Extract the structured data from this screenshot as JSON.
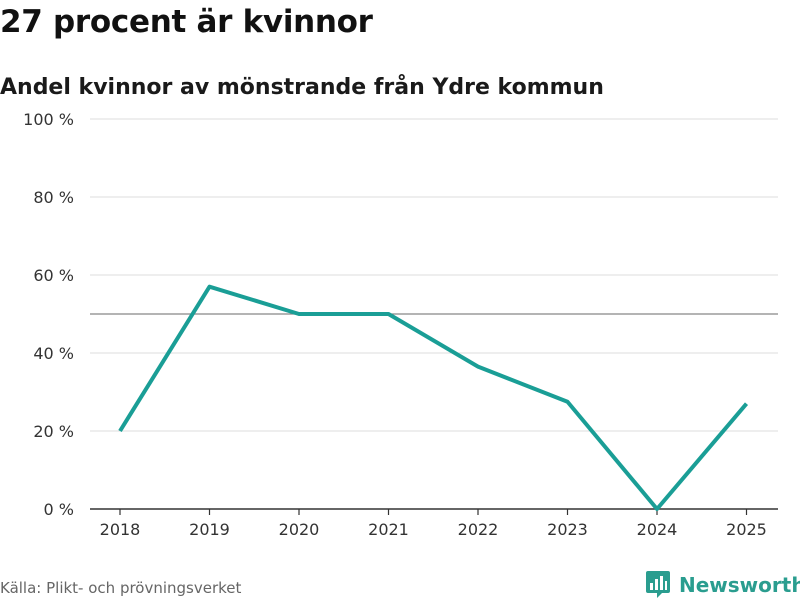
{
  "header": {
    "title": "27 procent är kvinnor",
    "subtitle": "Andel kvinnor av mönstrande från Ydre kommun"
  },
  "footer": {
    "source": "Källa: Plikt- och prövningsverket",
    "brand": "Newsworthy"
  },
  "colors": {
    "line": "#1a9e96",
    "brand": "#2a9d8f",
    "grid": "#dddddd",
    "reference": "#888888"
  },
  "chart_data": {
    "type": "line",
    "title": "27 procent är kvinnor",
    "subtitle": "Andel kvinnor av mönstrande från Ydre kommun",
    "xlabel": "",
    "ylabel": "",
    "categories": [
      "2018",
      "2019",
      "2020",
      "2021",
      "2022",
      "2023",
      "2024",
      "2025"
    ],
    "series": [
      {
        "name": "Andel kvinnor",
        "values": [
          20,
          57,
          50,
          50,
          36.5,
          27.5,
          0,
          27
        ]
      }
    ],
    "ylim": [
      0,
      100
    ],
    "yticks": [
      0,
      20,
      40,
      60,
      80,
      100
    ],
    "ytick_labels": [
      "0 %",
      "20 %",
      "40 %",
      "60 %",
      "80 %",
      "100 %"
    ],
    "reference_line": 50,
    "grid": true,
    "legend": "none"
  }
}
